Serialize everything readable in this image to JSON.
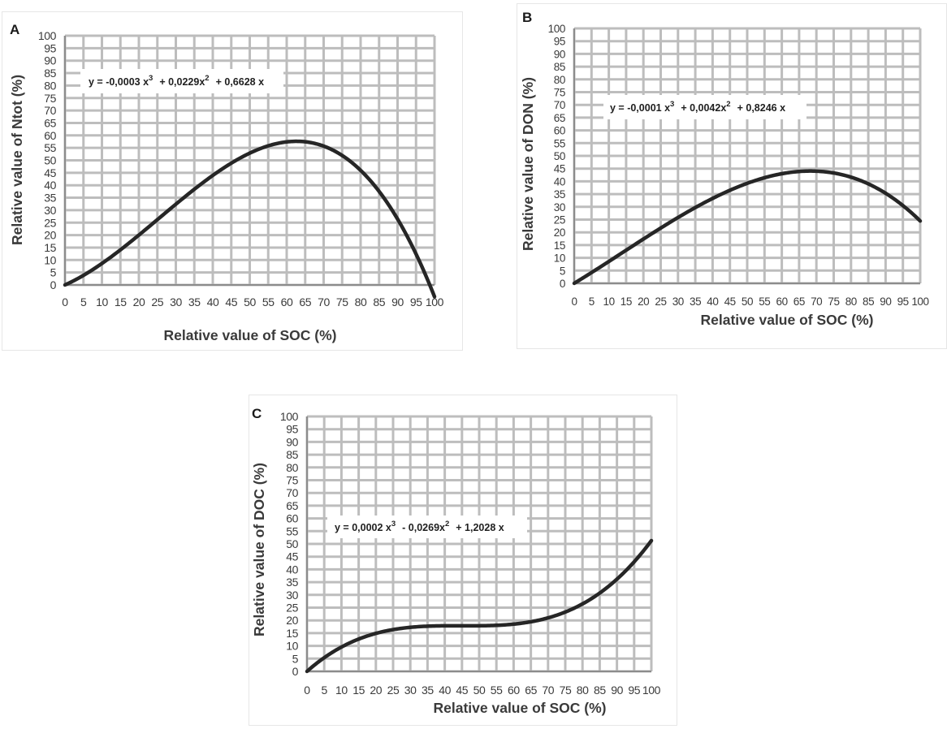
{
  "colors": {
    "grid": "#bdbdbd",
    "axis": "#8c8c8c",
    "curve": "#262626",
    "text": "#3a3a3a"
  },
  "chart_data": [
    {
      "panel_label": "A",
      "type": "line",
      "xlabel": "Relative value of SOC (%)",
      "ylabel": "Relative value of Ntot (%)",
      "xlim": [
        0,
        100
      ],
      "ylim": [
        0,
        100
      ],
      "xticks": [
        0,
        5,
        10,
        15,
        20,
        25,
        30,
        35,
        40,
        45,
        50,
        55,
        60,
        65,
        70,
        75,
        80,
        85,
        90,
        95,
        100
      ],
      "yticks": [
        0,
        5,
        10,
        15,
        20,
        25,
        30,
        35,
        40,
        45,
        50,
        55,
        60,
        65,
        70,
        75,
        80,
        85,
        90,
        95,
        100
      ],
      "grid": true,
      "equation": {
        "lead": "y = -0,0003 x",
        "exp1": "3",
        "mid": "+ 0,0229x",
        "exp2": "2",
        "tail": "+ 0,6628 x"
      },
      "coefficients": {
        "a3": -0.0003,
        "a2": 0.0229,
        "a1": 0.6628
      }
    },
    {
      "panel_label": "B",
      "type": "line",
      "xlabel": "Relative value of SOC (%)",
      "ylabel": "Relative value of DON (%)",
      "xlim": [
        0,
        100
      ],
      "ylim": [
        0,
        100
      ],
      "xticks": [
        0,
        5,
        10,
        15,
        20,
        25,
        30,
        35,
        40,
        45,
        50,
        55,
        60,
        65,
        70,
        75,
        80,
        85,
        90,
        95,
        100
      ],
      "yticks": [
        0,
        5,
        10,
        15,
        20,
        25,
        30,
        35,
        40,
        45,
        50,
        55,
        60,
        65,
        70,
        75,
        80,
        85,
        90,
        95,
        100
      ],
      "grid": true,
      "equation": {
        "lead": "y = -0,0001 x",
        "exp1": "3",
        "mid": "+ 0,0042x",
        "exp2": "2",
        "tail": "+ 0,8246 x"
      },
      "coefficients": {
        "a3": -0.0001,
        "a2": 0.0042,
        "a1": 0.8246
      }
    },
    {
      "panel_label": "C",
      "type": "line",
      "xlabel": "Relative value of SOC (%)",
      "ylabel": "Relative value of DOC (%)",
      "xlim": [
        0,
        100
      ],
      "ylim": [
        0,
        100
      ],
      "xticks": [
        0,
        5,
        10,
        15,
        20,
        25,
        30,
        35,
        40,
        45,
        50,
        55,
        60,
        65,
        70,
        75,
        80,
        85,
        90,
        95,
        100
      ],
      "yticks": [
        0,
        5,
        10,
        15,
        20,
        25,
        30,
        35,
        40,
        45,
        50,
        55,
        60,
        65,
        70,
        75,
        80,
        85,
        90,
        95,
        100
      ],
      "grid": true,
      "equation": {
        "lead": "y = 0,0002 x",
        "exp1": "3",
        "mid": "- 0,0269x",
        "exp2": "2",
        "tail": "+ 1,2028 x"
      },
      "coefficients": {
        "a3": 0.0002,
        "a2": -0.0269,
        "a1": 1.2028
      }
    }
  ]
}
